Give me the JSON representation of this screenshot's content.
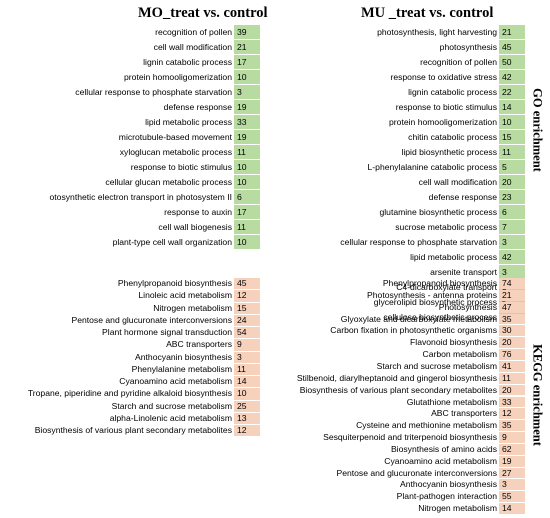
{
  "titles": {
    "left": "MO_treat vs. control",
    "right": "MU _treat vs. control"
  },
  "side_labels": {
    "go": "GO enrichment",
    "kegg": "KEGG enrichment"
  },
  "colors": {
    "go_cell": "#b8dba2",
    "kegg_cell": "#f6d2bd"
  },
  "chart_data": [
    {
      "type": "table",
      "title": "MO_treat vs. control",
      "section": "GO enrichment",
      "terms": [
        "recognition of pollen",
        "cell wall modification",
        "lignin catabolic process",
        "protein homooligomerization",
        "cellular response to phosphate starvation",
        "defense response",
        "lipid metabolic process",
        "microtubule-based movement",
        "xyloglucan metabolic process",
        "response to biotic stimulus",
        "cellular glucan metabolic process",
        "otosynthetic electron transport in photosystem II",
        "response to auxin",
        "cell wall biogenesis",
        "plant-type cell wall organization"
      ],
      "values": [
        39,
        21,
        17,
        10,
        3,
        19,
        33,
        19,
        11,
        10,
        10,
        6,
        17,
        11,
        10
      ]
    },
    {
      "type": "table",
      "title": "MU _treat vs. control",
      "section": "GO enrichment",
      "terms": [
        "photosynthesis, light harvesting",
        "photosynthesis",
        "recognition of pollen",
        "response to oxidative stress",
        "lignin catabolic process",
        "response to biotic stimulus",
        "protein homooligomerization",
        "chitin catabolic process",
        "lipid biosynthetic process",
        "L-phenylalanine catabolic process",
        "cell wall modification",
        "defense response",
        "glutamine biosynthetic process",
        "sucrose metabolic process",
        "cellular response to phosphate starvation",
        "lipid metabolic process",
        "arsenite transport",
        "C4-dicarboxylate transport",
        "glycerolipid biosynthetic process",
        "cellulose biosynthetic process"
      ],
      "values": [
        21,
        45,
        50,
        42,
        22,
        14,
        10,
        15,
        11,
        5,
        20,
        23,
        6,
        7,
        3,
        42,
        3,
        3,
        5,
        8
      ]
    },
    {
      "type": "table",
      "title": "MO_treat vs. control",
      "section": "KEGG enrichment",
      "terms": [
        "Phenylpropanoid biosynthesis",
        "Linoleic acid metabolism",
        "Nitrogen metabolism",
        "Pentose and glucuronate interconversions",
        "Plant hormone signal transduction",
        "ABC transporters",
        "Anthocyanin biosynthesis",
        "Phenylalanine metabolism",
        "Cyanoamino acid metabolism",
        "Tropane, piperidine and pyridine alkaloid biosynthesis",
        "Starch and sucrose metabolism",
        "alpha-Linolenic acid metabolism",
        "Biosynthesis of various plant secondary metabolites"
      ],
      "values": [
        45,
        12,
        15,
        24,
        54,
        9,
        3,
        11,
        14,
        10,
        25,
        13,
        12
      ]
    },
    {
      "type": "table",
      "title": "MU _treat vs. control",
      "section": "KEGG enrichment",
      "terms": [
        "Phenylpropanoid biosynthesis",
        "Photosynthesis - antenna proteins",
        "Photosynthesis",
        "Glyoxylate and dicarboxylate metabolism",
        "Carbon fixation in photosynthetic organisms",
        "Flavonoid biosynthesis",
        "Carbon metabolism",
        "Starch and sucrose metabolism",
        "Stilbenoid, diarylheptanoid and gingerol biosynthesis",
        "Biosynthesis of various plant secondary metabolites",
        "Glutathione metabolism",
        "ABC transporters",
        "Cysteine and methionine metabolism",
        "Sesquiterpenoid and triterpenoid biosynthesis",
        "Biosynthesis of amino acids",
        "Cyanoamino acid metabolism",
        "Pentose and glucuronate interconversions",
        "Anthocyanin biosynthesis",
        "Plant-pathogen interaction",
        "Nitrogen metabolism"
      ],
      "values": [
        74,
        21,
        47,
        35,
        30,
        20,
        76,
        41,
        11,
        20,
        33,
        12,
        35,
        9,
        62,
        19,
        27,
        3,
        55,
        14
      ]
    }
  ]
}
